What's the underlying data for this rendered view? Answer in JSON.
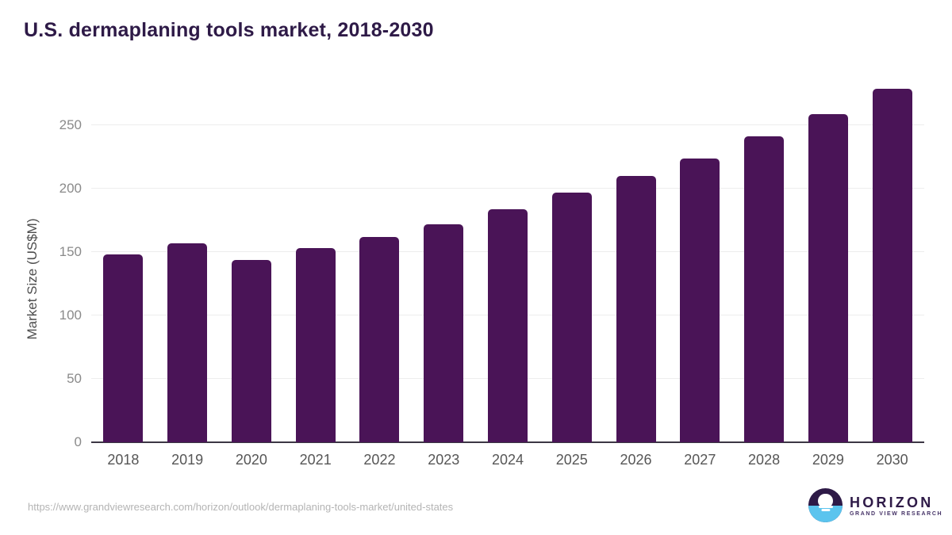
{
  "title": "U.S. dermaplaning tools market, 2018-2030",
  "chart_data": {
    "type": "bar",
    "categories": [
      "2018",
      "2019",
      "2020",
      "2021",
      "2022",
      "2023",
      "2024",
      "2025",
      "2026",
      "2027",
      "2028",
      "2029",
      "2030"
    ],
    "values": [
      148,
      157,
      144,
      153,
      162,
      172,
      184,
      197,
      210,
      224,
      241,
      259,
      279
    ],
    "title": "U.S. dermaplaning tools market, 2018-2030",
    "xlabel": "",
    "ylabel": "Market Size (US$M)",
    "ylim": [
      0,
      287
    ],
    "yticks": [
      0,
      50,
      100,
      150,
      200,
      250
    ],
    "grid": true,
    "legend": "none",
    "bar_color": "#4a1457",
    "gridline_color": "#ededed",
    "axis_color": "#3c3744",
    "tick_label_color": "#8a8a8a",
    "x_label_color": "#565656"
  },
  "footer": {
    "source_url": "https://www.grandviewresearch.com/horizon/outlook/dermaplaning-tools-market/united-states",
    "logo": {
      "brand": "HORIZON",
      "sub": "GRAND VIEW RESEARCH",
      "icon": "horizon-sunset-icon",
      "purple": "#2e1a47",
      "blue": "#5bc4ee"
    }
  }
}
